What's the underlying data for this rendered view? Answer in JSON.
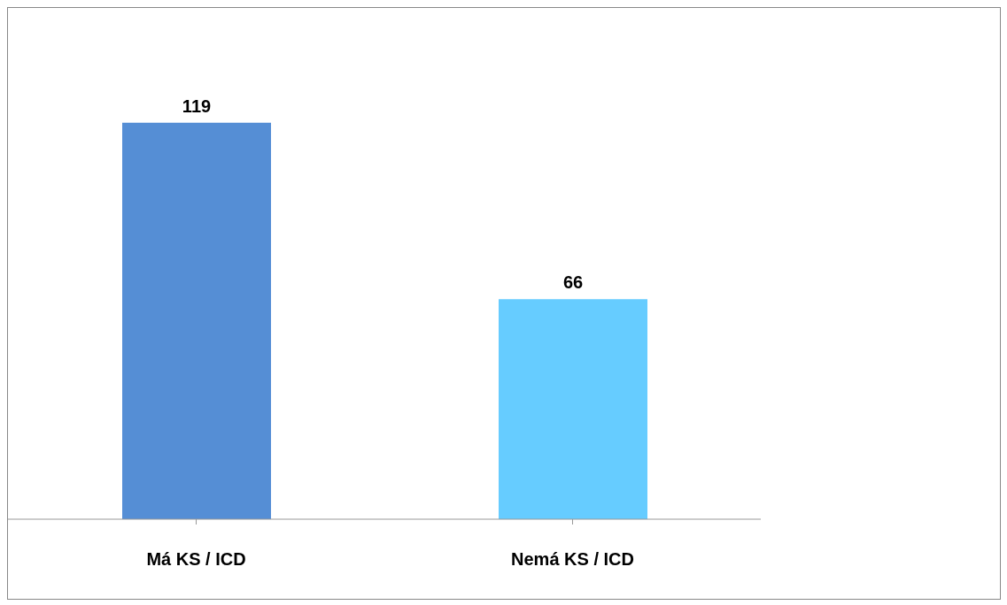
{
  "chart_data": {
    "type": "bar",
    "categories": [
      "Má KS / ICD",
      "Nemá KS / ICD"
    ],
    "values": [
      119,
      66
    ],
    "colors": [
      "#558ed5",
      "#66ccff"
    ],
    "data_labels": true,
    "grid": false,
    "legend": false
  }
}
